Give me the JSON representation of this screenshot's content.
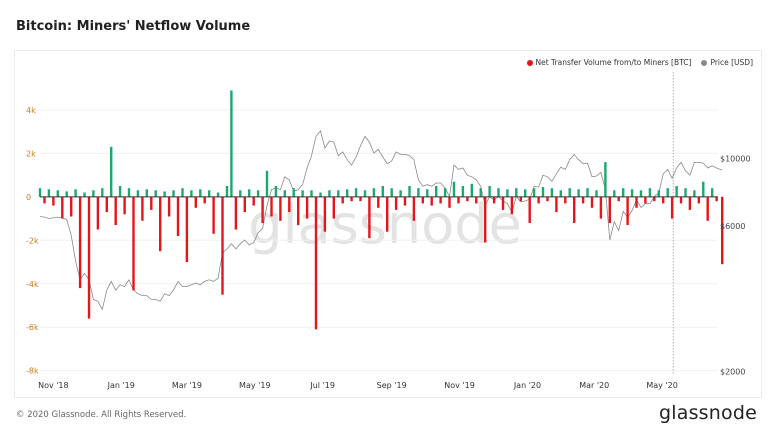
{
  "title": "Bitcoin: Miners' Netflow Volume",
  "footer": "© 2020 Glassnode. All Rights Reserved.",
  "logo": "glassnode",
  "watermark": "glassnode",
  "chart_data": {
    "type": "bar",
    "title": "Bitcoin: Miners' Netflow Volume",
    "legend_position": "top-right",
    "grid": true,
    "colors": {
      "positive": "#1aa86f",
      "negative": "#e5161b",
      "price": "#8a8a8a",
      "zero_line": "#333333",
      "marker": "#999999"
    },
    "x_axis": {
      "type": "date",
      "range": [
        "2018-10-20",
        "2020-07-01"
      ],
      "ticks": [
        {
          "date": "2018-11-01",
          "label": "Nov '18"
        },
        {
          "date": "2019-01-01",
          "label": "Jan '19"
        },
        {
          "date": "2019-03-01",
          "label": "Mar '19"
        },
        {
          "date": "2019-05-01",
          "label": "May '19"
        },
        {
          "date": "2019-07-01",
          "label": "Jul '19"
        },
        {
          "date": "2019-09-01",
          "label": "Sep '19"
        },
        {
          "date": "2019-11-01",
          "label": "Nov '19"
        },
        {
          "date": "2020-01-01",
          "label": "Jan '20"
        },
        {
          "date": "2020-03-01",
          "label": "Mar '20"
        },
        {
          "date": "2020-05-01",
          "label": "May '20"
        }
      ]
    },
    "y_axis_left": {
      "range": [
        -8200,
        6300
      ],
      "ticks": [
        {
          "value": 4000,
          "label": "4k"
        },
        {
          "value": 2000,
          "label": "2k"
        },
        {
          "value": 0,
          "label": "0"
        },
        {
          "value": -2000,
          "label": "-2k"
        },
        {
          "value": -4000,
          "label": "-4k"
        },
        {
          "value": -6000,
          "label": "-6k"
        },
        {
          "value": -8000,
          "label": "-8k"
        }
      ]
    },
    "y_axis_right": {
      "scale": "log",
      "range": [
        1950,
        21000
      ],
      "ticks": [
        {
          "value": 10000,
          "label": "$10000"
        },
        {
          "value": 6000,
          "label": "$6000"
        },
        {
          "value": 2000,
          "label": "$2000"
        }
      ]
    },
    "marker_date": "2020-05-11",
    "series": [
      {
        "name": "Net Transfer Volume from/to Miners [BTC]",
        "legend_color": "#e5161b"
      },
      {
        "name": "Price [USD]",
        "legend_color": "#8a8a8a"
      }
    ],
    "points": [
      [
        "2018-10-20",
        400,
        6450
      ],
      [
        "2018-10-24",
        -300,
        6420
      ],
      [
        "2018-10-28",
        350,
        6350
      ],
      [
        "2018-11-01",
        -400,
        6380
      ],
      [
        "2018-11-05",
        300,
        6420
      ],
      [
        "2018-11-09",
        -1000,
        6380
      ],
      [
        "2018-11-13",
        250,
        6300
      ],
      [
        "2018-11-17",
        -900,
        5600
      ],
      [
        "2018-11-21",
        350,
        4600
      ],
      [
        "2018-11-25",
        -4200,
        4000
      ],
      [
        "2018-11-29",
        200,
        4200
      ],
      [
        "2018-12-03",
        -5600,
        4000
      ],
      [
        "2018-12-07",
        300,
        3450
      ],
      [
        "2018-12-11",
        -1500,
        3400
      ],
      [
        "2018-12-15",
        400,
        3200
      ],
      [
        "2018-12-19",
        -700,
        3700
      ],
      [
        "2018-12-23",
        2300,
        3950
      ],
      [
        "2018-12-27",
        -1300,
        3700
      ],
      [
        "2018-12-31",
        500,
        3850
      ],
      [
        "2019-01-04",
        -800,
        3800
      ],
      [
        "2019-01-08",
        400,
        4000
      ],
      [
        "2019-01-12",
        -4300,
        3700
      ],
      [
        "2019-01-16",
        300,
        3600
      ],
      [
        "2019-01-20",
        -1100,
        3550
      ],
      [
        "2019-01-24",
        350,
        3550
      ],
      [
        "2019-01-28",
        -600,
        3450
      ],
      [
        "2019-02-01",
        300,
        3450
      ],
      [
        "2019-02-05",
        -2500,
        3400
      ],
      [
        "2019-02-09",
        250,
        3600
      ],
      [
        "2019-02-13",
        -900,
        3550
      ],
      [
        "2019-02-17",
        300,
        3700
      ],
      [
        "2019-02-21",
        -1800,
        3950
      ],
      [
        "2019-02-25",
        400,
        3800
      ],
      [
        "2019-03-01",
        -3000,
        3800
      ],
      [
        "2019-03-05",
        300,
        3850
      ],
      [
        "2019-03-09",
        -500,
        3900
      ],
      [
        "2019-03-13",
        350,
        3850
      ],
      [
        "2019-03-17",
        -300,
        3950
      ],
      [
        "2019-03-21",
        300,
        4000
      ],
      [
        "2019-03-25",
        -1700,
        3950
      ],
      [
        "2019-03-29",
        200,
        4050
      ],
      [
        "2019-04-02",
        -4500,
        4900
      ],
      [
        "2019-04-06",
        500,
        5050
      ],
      [
        "2019-04-10",
        4900,
        5250
      ],
      [
        "2019-04-14",
        -1500,
        5050
      ],
      [
        "2019-04-18",
        300,
        5250
      ],
      [
        "2019-04-22",
        -700,
        5400
      ],
      [
        "2019-04-26",
        350,
        5200
      ],
      [
        "2019-04-30",
        -400,
        5300
      ],
      [
        "2019-05-04",
        300,
        5700
      ],
      [
        "2019-05-08",
        -1200,
        5900
      ],
      [
        "2019-05-12",
        1200,
        7000
      ],
      [
        "2019-05-16",
        -900,
        7900
      ],
      [
        "2019-05-20",
        500,
        8000
      ],
      [
        "2019-05-24",
        -1100,
        7900
      ],
      [
        "2019-05-28",
        300,
        8700
      ],
      [
        "2019-06-01",
        -700,
        8500
      ],
      [
        "2019-06-05",
        400,
        7800
      ],
      [
        "2019-06-09",
        -1300,
        7900
      ],
      [
        "2019-06-13",
        300,
        8200
      ],
      [
        "2019-06-17",
        -1000,
        9300
      ],
      [
        "2019-06-21",
        300,
        10200
      ],
      [
        "2019-06-25",
        -6100,
        11800
      ],
      [
        "2019-06-29",
        200,
        12300
      ],
      [
        "2019-07-03",
        -1600,
        10800
      ],
      [
        "2019-07-07",
        300,
        11400
      ],
      [
        "2019-07-11",
        -1000,
        11300
      ],
      [
        "2019-07-15",
        300,
        10200
      ],
      [
        "2019-07-19",
        -300,
        10500
      ],
      [
        "2019-07-23",
        350,
        9900
      ],
      [
        "2019-07-27",
        -200,
        9500
      ],
      [
        "2019-07-31",
        400,
        10100
      ],
      [
        "2019-08-04",
        -200,
        11000
      ],
      [
        "2019-08-08",
        300,
        11800
      ],
      [
        "2019-08-12",
        -1900,
        11300
      ],
      [
        "2019-08-16",
        400,
        10400
      ],
      [
        "2019-08-20",
        -500,
        10700
      ],
      [
        "2019-08-24",
        500,
        10100
      ],
      [
        "2019-08-28",
        -1600,
        9600
      ],
      [
        "2019-09-01",
        400,
        9800
      ],
      [
        "2019-09-05",
        -600,
        10500
      ],
      [
        "2019-09-09",
        300,
        10300
      ],
      [
        "2019-09-13",
        -400,
        10300
      ],
      [
        "2019-09-17",
        500,
        10200
      ],
      [
        "2019-09-21",
        -1100,
        9900
      ],
      [
        "2019-09-25",
        400,
        8500
      ],
      [
        "2019-09-29",
        -300,
        8100
      ],
      [
        "2019-10-03",
        350,
        8200
      ],
      [
        "2019-10-07",
        -400,
        8100
      ],
      [
        "2019-10-11",
        500,
        8300
      ],
      [
        "2019-10-15",
        -300,
        8300
      ],
      [
        "2019-10-19",
        400,
        8000
      ],
      [
        "2019-10-23",
        -500,
        7500
      ],
      [
        "2019-10-27",
        700,
        9500
      ],
      [
        "2019-10-31",
        -300,
        9200
      ],
      [
        "2019-11-04",
        500,
        9300
      ],
      [
        "2019-11-08",
        -200,
        8800
      ],
      [
        "2019-11-12",
        600,
        8700
      ],
      [
        "2019-11-16",
        -300,
        8500
      ],
      [
        "2019-11-20",
        400,
        8100
      ],
      [
        "2019-11-24",
        -2100,
        7000
      ],
      [
        "2019-11-28",
        500,
        7500
      ],
      [
        "2019-12-02",
        -300,
        7300
      ],
      [
        "2019-12-06",
        400,
        7500
      ],
      [
        "2019-12-10",
        -600,
        7250
      ],
      [
        "2019-12-14",
        350,
        7100
      ],
      [
        "2019-12-18",
        -800,
        6650
      ],
      [
        "2019-12-22",
        400,
        7500
      ],
      [
        "2019-12-26",
        -200,
        7200
      ],
      [
        "2019-12-30",
        350,
        7250
      ],
      [
        "2020-01-03",
        -1200,
        7350
      ],
      [
        "2020-01-07",
        400,
        8100
      ],
      [
        "2020-01-11",
        -300,
        8050
      ],
      [
        "2020-01-15",
        450,
        8800
      ],
      [
        "2020-01-19",
        -200,
        8700
      ],
      [
        "2020-01-23",
        400,
        8400
      ],
      [
        "2020-01-27",
        -700,
        8900
      ],
      [
        "2020-01-31",
        300,
        9350
      ],
      [
        "2020-02-04",
        -300,
        9200
      ],
      [
        "2020-02-08",
        400,
        9900
      ],
      [
        "2020-02-12",
        -1200,
        10300
      ],
      [
        "2020-02-16",
        350,
        9900
      ],
      [
        "2020-02-20",
        -300,
        9600
      ],
      [
        "2020-02-24",
        400,
        9650
      ],
      [
        "2020-02-28",
        -500,
        8700
      ],
      [
        "2020-03-03",
        300,
        8750
      ],
      [
        "2020-03-07",
        -1000,
        9000
      ],
      [
        "2020-03-11",
        1600,
        7900
      ],
      [
        "2020-03-15",
        -1200,
        5400
      ],
      [
        "2020-03-19",
        300,
        6200
      ],
      [
        "2020-03-23",
        -200,
        5800
      ],
      [
        "2020-03-27",
        400,
        6700
      ],
      [
        "2020-03-31",
        -1300,
        6400
      ],
      [
        "2020-04-04",
        350,
        6750
      ],
      [
        "2020-04-08",
        -500,
        7300
      ],
      [
        "2020-04-12",
        300,
        6900
      ],
      [
        "2020-04-16",
        -300,
        7100
      ],
      [
        "2020-04-20",
        400,
        7100
      ],
      [
        "2020-04-24",
        -200,
        7500
      ],
      [
        "2020-04-28",
        300,
        7700
      ],
      [
        "2020-05-02",
        -300,
        8900
      ],
      [
        "2020-05-06",
        400,
        9200
      ],
      [
        "2020-05-10",
        -1000,
        8600
      ],
      [
        "2020-05-14",
        500,
        9300
      ],
      [
        "2020-05-18",
        -300,
        9700
      ],
      [
        "2020-05-22",
        400,
        9100
      ],
      [
        "2020-05-26",
        -600,
        8800
      ],
      [
        "2020-05-30",
        300,
        9700
      ],
      [
        "2020-06-03",
        -300,
        9700
      ],
      [
        "2020-06-07",
        700,
        9650
      ],
      [
        "2020-06-11",
        -1100,
        9300
      ],
      [
        "2020-06-15",
        400,
        9450
      ],
      [
        "2020-06-19",
        -200,
        9300
      ],
      [
        "2020-06-24",
        -3100,
        9150
      ]
    ]
  }
}
